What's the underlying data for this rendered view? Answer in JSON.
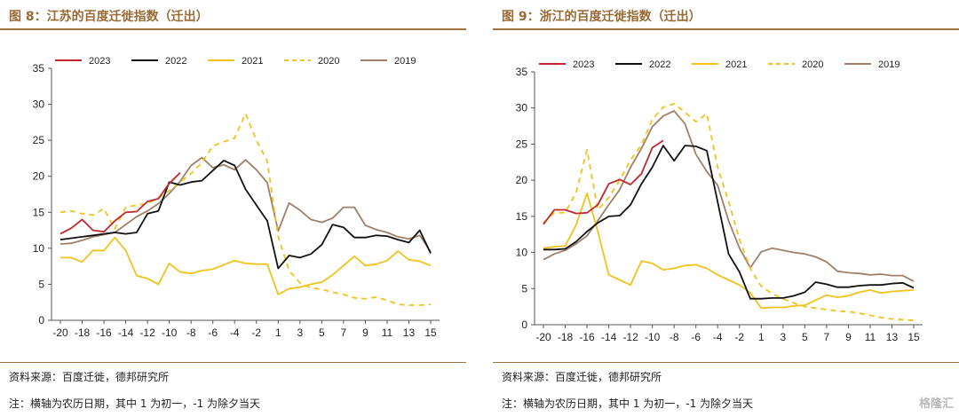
{
  "panels": [
    {
      "title": "图 8：江苏的百度迁徙指数（迁出）",
      "source": "资料来源：百度迁徙，德邦研究所",
      "note": "注：横轴为农历日期，其中 1 为初一，-1 为除夕当天"
    },
    {
      "title": "图 9：浙江的百度迁徙指数（迁出）",
      "source": "资料来源：百度迁徙，德邦研究所",
      "note": "注：横轴为农历日期，其中 1 为初一，-1 为除夕当天"
    }
  ],
  "watermark": "格隆汇",
  "colors": {
    "2023": "#c0282d",
    "2022": "#111111",
    "2021": "#f2c21b",
    "2020": "#f2c21b",
    "2019": "#a08068",
    "accent": "#9a6a35"
  },
  "chart_data": [
    {
      "type": "line",
      "x": [
        -20,
        -19,
        -18,
        -17,
        -16,
        -15,
        -14,
        -13,
        -12,
        -11,
        -10,
        -9,
        -8,
        -7,
        -6,
        -5,
        -4,
        -3,
        -2,
        -1,
        1,
        2,
        3,
        4,
        5,
        6,
        7,
        8,
        9,
        10,
        11,
        12,
        13,
        14,
        15
      ],
      "xticks": [
        "-20",
        "-18",
        "-16",
        "-14",
        "-12",
        "-10",
        "-8",
        "-6",
        "-4",
        "-2",
        "1",
        "3",
        "5",
        "7",
        "9",
        "11",
        "13",
        "15"
      ],
      "yticks": [
        "0",
        "5",
        "10",
        "15",
        "20",
        "25",
        "30",
        "35"
      ],
      "ylim": [
        0,
        35
      ],
      "legend_position": "top",
      "series": [
        {
          "name": "2023",
          "style": "solid",
          "values": [
            12,
            12.8,
            14,
            12.5,
            12.3,
            13.8,
            15,
            15.1,
            16.5,
            16.9,
            19,
            20.5,
            null,
            null,
            null,
            null,
            null,
            null,
            null,
            null,
            null,
            null,
            null,
            null,
            null,
            null,
            null,
            null,
            null,
            null,
            null,
            null,
            null,
            null,
            null
          ]
        },
        {
          "name": "2022",
          "style": "solid",
          "values": [
            11.2,
            11.4,
            11.6,
            11.8,
            12,
            12.2,
            12,
            12.2,
            14.8,
            15.2,
            19.2,
            18.8,
            19.2,
            19.4,
            20.8,
            22.2,
            21.5,
            18.2,
            16,
            13.8,
            7.2,
            9,
            8.7,
            9.2,
            10.5,
            13.3,
            12.9,
            11.5,
            11.5,
            11.8,
            11.7,
            11.2,
            10.8,
            12.5,
            9.3
          ]
        },
        {
          "name": "2021",
          "style": "solid",
          "values": [
            8.7,
            8.7,
            8.1,
            9.7,
            9.7,
            11.5,
            9.7,
            6.2,
            5.8,
            5,
            7.9,
            6.7,
            6.5,
            6.9,
            7.1,
            7.7,
            8.3,
            7.9,
            7.8,
            7.8,
            3.6,
            4.4,
            4.6,
            5,
            5.3,
            6.3,
            7.6,
            8.9,
            7.6,
            7.8,
            8.3,
            9.6,
            8.4,
            8.2,
            7.6
          ]
        },
        {
          "name": "2020",
          "style": "dashed",
          "values": [
            15,
            15.2,
            14.8,
            14.6,
            15.5,
            12.7,
            15.7,
            16,
            16.2,
            17,
            18,
            19.2,
            20.4,
            21.9,
            24.2,
            24.8,
            25.3,
            28.7,
            25,
            22.1,
            11.6,
            6.9,
            5.2,
            4.5,
            4.3,
            3.9,
            3.6,
            3.1,
            3,
            3.2,
            2.8,
            2.2,
            2.1,
            2.1,
            2.2
          ]
        },
        {
          "name": "2019",
          "style": "solid",
          "values": [
            10.6,
            10.7,
            11.1,
            11.6,
            11.9,
            12.2,
            13.3,
            14.4,
            15.2,
            16.2,
            17.6,
            19.3,
            21.5,
            22.6,
            21.2,
            21.6,
            20.9,
            22.3,
            20.9,
            19.1,
            12.4,
            16.3,
            15.3,
            14,
            13.6,
            14.2,
            15.7,
            15.7,
            13.2,
            12.6,
            12.2,
            11.6,
            11.3,
            11.8,
            9.5
          ]
        }
      ]
    },
    {
      "type": "line",
      "x": [
        -20,
        -19,
        -18,
        -17,
        -16,
        -15,
        -14,
        -13,
        -12,
        -11,
        -10,
        -9,
        -8,
        -7,
        -6,
        -5,
        -4,
        -3,
        -2,
        -1,
        1,
        2,
        3,
        4,
        5,
        6,
        7,
        8,
        9,
        10,
        11,
        12,
        13,
        14,
        15
      ],
      "xticks": [
        "-20",
        "-18",
        "-16",
        "-14",
        "-12",
        "-10",
        "-8",
        "-6",
        "-4",
        "-2",
        "1",
        "3",
        "5",
        "7",
        "9",
        "11",
        "13",
        "15"
      ],
      "yticks": [
        "0",
        "5",
        "10",
        "15",
        "20",
        "25",
        "30",
        "35"
      ],
      "ylim": [
        0,
        35
      ],
      "legend_position": "top",
      "series": [
        {
          "name": "2023",
          "style": "solid",
          "values": [
            13.9,
            15.9,
            15.9,
            15.4,
            15.5,
            16.6,
            19.5,
            20.1,
            19.4,
            20.9,
            24.5,
            25.5,
            null,
            null,
            null,
            null,
            null,
            null,
            null,
            null,
            null,
            null,
            null,
            null,
            null,
            null,
            null,
            null,
            null,
            null,
            null,
            null,
            null,
            null,
            null
          ]
        },
        {
          "name": "2022",
          "style": "solid",
          "values": [
            10.4,
            10.4,
            10.5,
            11.5,
            12.9,
            14.1,
            15,
            15.1,
            16.6,
            19.5,
            21.8,
            24.8,
            22.7,
            24.8,
            24.7,
            24.1,
            17,
            9.8,
            7.3,
            3.6,
            3.6,
            3.7,
            3.7,
            4,
            4.5,
            5.9,
            5.6,
            5.2,
            5.2,
            5.4,
            5.5,
            5.5,
            5.7,
            5.8,
            5.1
          ]
        },
        {
          "name": "2021",
          "style": "solid",
          "values": [
            10.6,
            10.8,
            10.9,
            13.8,
            18.2,
            12.9,
            6.9,
            6.2,
            5.5,
            8.8,
            8.5,
            7.6,
            7.8,
            8.2,
            8.3,
            7.8,
            6.9,
            6.2,
            5.5,
            4.4,
            2.3,
            2.4,
            2.4,
            2.6,
            2.7,
            3.4,
            4.1,
            3.8,
            4,
            4.5,
            4.8,
            4.4,
            4.6,
            4.7,
            4.8
          ]
        },
        {
          "name": "2020",
          "style": "dashed",
          "values": [
            14.1,
            15.5,
            15.5,
            18.3,
            24.2,
            15.9,
            17.6,
            20,
            22.8,
            24.9,
            28.4,
            30.1,
            30.6,
            29.4,
            28.1,
            29.2,
            21.8,
            17.1,
            11.8,
            7.8,
            5.3,
            4.3,
            3.6,
            3,
            2.5,
            2.3,
            2.1,
            1.9,
            1.8,
            1.6,
            1.3,
            1,
            0.8,
            0.7,
            0.6
          ]
        },
        {
          "name": "2019",
          "style": "solid",
          "values": [
            9,
            9.8,
            10.3,
            11.2,
            12.3,
            14.4,
            16.6,
            18.7,
            21.8,
            24.4,
            27.4,
            28.9,
            29.6,
            27.8,
            23.6,
            21.2,
            19.3,
            14.4,
            10.6,
            7.9,
            10.1,
            10.6,
            10.3,
            10,
            9.8,
            9.4,
            8.7,
            7.4,
            7.2,
            7.1,
            6.9,
            7,
            6.8,
            6.8,
            6
          ]
        }
      ]
    }
  ]
}
